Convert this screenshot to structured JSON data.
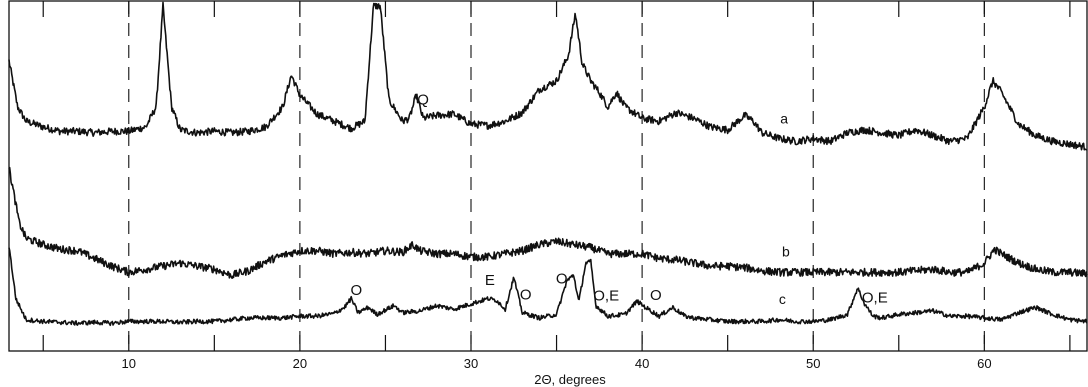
{
  "chart_data": {
    "type": "line",
    "title": "",
    "xlabel": "2Θ, degrees",
    "ylabel": "",
    "xlim": [
      3,
      66
    ],
    "x_ticks": [
      10,
      20,
      30,
      40,
      50,
      60
    ],
    "x_minor_ticks": [
      5,
      15,
      25,
      35,
      45,
      55,
      65
    ],
    "grid": "dashed vertical lines at 10, 20, 30, 40, 50, 60",
    "series": [
      {
        "name": "a",
        "points": [
          [
            3.0,
            62
          ],
          [
            3.5,
            30
          ],
          [
            4.0,
            20
          ],
          [
            5,
            16
          ],
          [
            6,
            13
          ],
          [
            7,
            13
          ],
          [
            8,
            12
          ],
          [
            9,
            13
          ],
          [
            10,
            13
          ],
          [
            11,
            16
          ],
          [
            11.6,
            30
          ],
          [
            12.0,
            100
          ],
          [
            12.5,
            30
          ],
          [
            13,
            14
          ],
          [
            14,
            12
          ],
          [
            15,
            13
          ],
          [
            16,
            12
          ],
          [
            17,
            13
          ],
          [
            18,
            16
          ],
          [
            19,
            30
          ],
          [
            19.5,
            52
          ],
          [
            20,
            38
          ],
          [
            21,
            25
          ],
          [
            22,
            20
          ],
          [
            23,
            15
          ],
          [
            23.8,
            20
          ],
          [
            24.3,
            100
          ],
          [
            24.7,
            100
          ],
          [
            25.2,
            35
          ],
          [
            26,
            20
          ],
          [
            26.4,
            22
          ],
          [
            26.8,
            38
          ],
          [
            27.2,
            22
          ],
          [
            28,
            24
          ],
          [
            29,
            25
          ],
          [
            30,
            18
          ],
          [
            31,
            17
          ],
          [
            32,
            20
          ],
          [
            33,
            26
          ],
          [
            34,
            42
          ],
          [
            35,
            48
          ],
          [
            35.7,
            66
          ],
          [
            36.1,
            95
          ],
          [
            36.5,
            60
          ],
          [
            37,
            48
          ],
          [
            37.5,
            40
          ],
          [
            38,
            30
          ],
          [
            38.5,
            40
          ],
          [
            39,
            30
          ],
          [
            40,
            22
          ],
          [
            41,
            20
          ],
          [
            42,
            26
          ],
          [
            43,
            22
          ],
          [
            44,
            16
          ],
          [
            45,
            14
          ],
          [
            46,
            24
          ],
          [
            46.5,
            20
          ],
          [
            47,
            12
          ],
          [
            48,
            8
          ],
          [
            49,
            6
          ],
          [
            50,
            8
          ],
          [
            51,
            6
          ],
          [
            52,
            12
          ],
          [
            53,
            14
          ],
          [
            54,
            12
          ],
          [
            55,
            10
          ],
          [
            56,
            14
          ],
          [
            57,
            10
          ],
          [
            58,
            6
          ],
          [
            59,
            8
          ],
          [
            60,
            30
          ],
          [
            60.5,
            48
          ],
          [
            61,
            40
          ],
          [
            62,
            18
          ],
          [
            63,
            10
          ],
          [
            64,
            6
          ],
          [
            65,
            4
          ],
          [
            66,
            2
          ]
        ]
      },
      {
        "name": "b",
        "points": [
          [
            3.0,
            86
          ],
          [
            3.6,
            50
          ],
          [
            4,
            40
          ],
          [
            5,
            36
          ],
          [
            6,
            33
          ],
          [
            7,
            32
          ],
          [
            8,
            27
          ],
          [
            9,
            22
          ],
          [
            10,
            18
          ],
          [
            11,
            20
          ],
          [
            12,
            22
          ],
          [
            13,
            24
          ],
          [
            14,
            22
          ],
          [
            15,
            20
          ],
          [
            16,
            16
          ],
          [
            17,
            19
          ],
          [
            18,
            25
          ],
          [
            19,
            29
          ],
          [
            20,
            32
          ],
          [
            21,
            32
          ],
          [
            22,
            30
          ],
          [
            23,
            31
          ],
          [
            24,
            30
          ],
          [
            25,
            32
          ],
          [
            26,
            31
          ],
          [
            26.6,
            36
          ],
          [
            27,
            32
          ],
          [
            28,
            30
          ],
          [
            29,
            30
          ],
          [
            30,
            28
          ],
          [
            31,
            28
          ],
          [
            32,
            30
          ],
          [
            33,
            32
          ],
          [
            34,
            36
          ],
          [
            35,
            38
          ],
          [
            36,
            36
          ],
          [
            37,
            34
          ],
          [
            38,
            30
          ],
          [
            39,
            30
          ],
          [
            40,
            30
          ],
          [
            41,
            27
          ],
          [
            42,
            26
          ],
          [
            43,
            24
          ],
          [
            44,
            22
          ],
          [
            45,
            22
          ],
          [
            46,
            21
          ],
          [
            47,
            19
          ],
          [
            48,
            18
          ],
          [
            49,
            18
          ],
          [
            50,
            18
          ],
          [
            51,
            18
          ],
          [
            52,
            18
          ],
          [
            53,
            18
          ],
          [
            54,
            18
          ],
          [
            55,
            18
          ],
          [
            56,
            19
          ],
          [
            57,
            20
          ],
          [
            58,
            18
          ],
          [
            59,
            18
          ],
          [
            60,
            24
          ],
          [
            60.6,
            33
          ],
          [
            61,
            30
          ],
          [
            62,
            24
          ],
          [
            63,
            20
          ],
          [
            64,
            18
          ],
          [
            65,
            18
          ],
          [
            66,
            17
          ]
        ]
      },
      {
        "name": "c",
        "points": [
          [
            3.0,
            98
          ],
          [
            3.4,
            38
          ],
          [
            4,
            14
          ],
          [
            5,
            12
          ],
          [
            6,
            11
          ],
          [
            7,
            10
          ],
          [
            8,
            11
          ],
          [
            9,
            10
          ],
          [
            10,
            12
          ],
          [
            11,
            12
          ],
          [
            12,
            12
          ],
          [
            13,
            11
          ],
          [
            14,
            12
          ],
          [
            15,
            12
          ],
          [
            16,
            14
          ],
          [
            17,
            16
          ],
          [
            18,
            16
          ],
          [
            19,
            16
          ],
          [
            20,
            18
          ],
          [
            21,
            18
          ],
          [
            22,
            21
          ],
          [
            22.6,
            28
          ],
          [
            23.0,
            38
          ],
          [
            23.4,
            22
          ],
          [
            24,
            28
          ],
          [
            24.5,
            20
          ],
          [
            25.5,
            30
          ],
          [
            26,
            22
          ],
          [
            27,
            24
          ],
          [
            28,
            30
          ],
          [
            29,
            26
          ],
          [
            30,
            32
          ],
          [
            31,
            38
          ],
          [
            31.5,
            36
          ],
          [
            32,
            26
          ],
          [
            32.5,
            62
          ],
          [
            33,
            22
          ],
          [
            34,
            16
          ],
          [
            35,
            20
          ],
          [
            35.6,
            58
          ],
          [
            36.0,
            65
          ],
          [
            36.3,
            34
          ],
          [
            36.7,
            78
          ],
          [
            37.0,
            80
          ],
          [
            37.3,
            30
          ],
          [
            38,
            18
          ],
          [
            39,
            20
          ],
          [
            39.7,
            35
          ],
          [
            40.2,
            28
          ],
          [
            41,
            18
          ],
          [
            41.8,
            28
          ],
          [
            42.5,
            18
          ],
          [
            43,
            16
          ],
          [
            44,
            14
          ],
          [
            45,
            12
          ],
          [
            46,
            12
          ],
          [
            47,
            12
          ],
          [
            48,
            14
          ],
          [
            49,
            12
          ],
          [
            50,
            12
          ],
          [
            51,
            14
          ],
          [
            52,
            20
          ],
          [
            52.6,
            50
          ],
          [
            53.0,
            32
          ],
          [
            53.5,
            18
          ],
          [
            54,
            16
          ],
          [
            55,
            20
          ],
          [
            56,
            22
          ],
          [
            57,
            24
          ],
          [
            58,
            18
          ],
          [
            59,
            18
          ],
          [
            60,
            16
          ],
          [
            61,
            14
          ],
          [
            62,
            22
          ],
          [
            63,
            28
          ],
          [
            64,
            20
          ],
          [
            65,
            14
          ],
          [
            66,
            12
          ]
        ]
      }
    ],
    "curve_labels": [
      {
        "text": "a",
        "series": "a",
        "x": 48.3
      },
      {
        "text": "b",
        "series": "b",
        "x": 48.4
      },
      {
        "text": "c",
        "series": "c",
        "x": 48.2
      }
    ],
    "annotations": [
      {
        "text": "Q",
        "x": 27.2,
        "series": "a"
      },
      {
        "text": "O",
        "x": 23.3,
        "series": "c"
      },
      {
        "text": "E",
        "x": 31.1,
        "series": "c"
      },
      {
        "text": "O",
        "x": 33.2,
        "series": "c"
      },
      {
        "text": "O",
        "x": 35.3,
        "series": "c"
      },
      {
        "text": "O,E",
        "x": 37.9,
        "series": "c"
      },
      {
        "text": "O",
        "x": 40.8,
        "series": "c"
      },
      {
        "text": "O,E",
        "x": 53.6,
        "series": "c"
      }
    ]
  }
}
